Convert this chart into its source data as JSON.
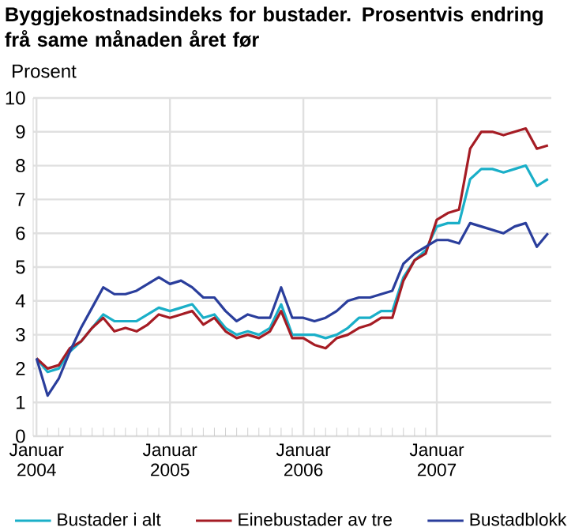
{
  "chart_data": {
    "type": "line",
    "title": "Byggjekostnadsindeks for bustader. Prosentvis endring frå same månaden året før",
    "ylabel": "Prosent",
    "x": [
      "2004-01",
      "2004-02",
      "2004-03",
      "2004-04",
      "2004-05",
      "2004-06",
      "2004-07",
      "2004-08",
      "2004-09",
      "2004-10",
      "2004-11",
      "2004-12",
      "2005-01",
      "2005-02",
      "2005-03",
      "2005-04",
      "2005-05",
      "2005-06",
      "2005-07",
      "2005-08",
      "2005-09",
      "2005-10",
      "2005-11",
      "2005-12",
      "2006-01",
      "2006-02",
      "2006-03",
      "2006-04",
      "2006-05",
      "2006-06",
      "2006-07",
      "2006-08",
      "2006-09",
      "2006-10",
      "2006-11",
      "2006-12",
      "2007-01",
      "2007-02",
      "2007-03",
      "2007-04",
      "2007-05",
      "2007-06",
      "2007-07",
      "2007-08",
      "2007-09",
      "2007-10",
      "2007-11"
    ],
    "series": [
      {
        "name": "Bustader i alt",
        "color": "#1aafc8",
        "values": [
          2.3,
          1.9,
          2.0,
          2.5,
          2.8,
          3.2,
          3.6,
          3.4,
          3.4,
          3.4,
          3.6,
          3.8,
          3.7,
          3.8,
          3.9,
          3.5,
          3.6,
          3.2,
          3.0,
          3.1,
          3.0,
          3.2,
          3.9,
          3.0,
          3.0,
          3.0,
          2.9,
          3.0,
          3.2,
          3.5,
          3.5,
          3.7,
          3.7,
          4.7,
          5.2,
          5.5,
          6.2,
          6.3,
          6.3,
          7.6,
          7.9,
          7.9,
          7.8,
          7.9,
          8.0,
          7.4,
          7.6
        ]
      },
      {
        "name": "Einebustader av tre",
        "color": "#a51c24",
        "values": [
          2.3,
          2.0,
          2.1,
          2.6,
          2.8,
          3.2,
          3.5,
          3.1,
          3.2,
          3.1,
          3.3,
          3.6,
          3.5,
          3.6,
          3.7,
          3.3,
          3.5,
          3.1,
          2.9,
          3.0,
          2.9,
          3.1,
          3.7,
          2.9,
          2.9,
          2.7,
          2.6,
          2.9,
          3.0,
          3.2,
          3.3,
          3.5,
          3.5,
          4.6,
          5.2,
          5.4,
          6.4,
          6.6,
          6.7,
          8.5,
          9.0,
          9.0,
          8.9,
          9.0,
          9.1,
          8.5,
          8.6
        ]
      },
      {
        "name": "Bustadblokk",
        "color": "#2a3e9c",
        "values": [
          2.3,
          1.2,
          1.7,
          2.5,
          3.2,
          3.8,
          4.4,
          4.2,
          4.2,
          4.3,
          4.5,
          4.7,
          4.5,
          4.6,
          4.4,
          4.1,
          4.1,
          3.7,
          3.4,
          3.6,
          3.5,
          3.5,
          4.4,
          3.5,
          3.5,
          3.4,
          3.5,
          3.7,
          4.0,
          4.1,
          4.1,
          4.2,
          4.3,
          5.1,
          5.4,
          5.6,
          5.8,
          5.8,
          5.7,
          6.3,
          6.2,
          6.1,
          6.0,
          6.2,
          6.3,
          5.6,
          6.0
        ]
      }
    ],
    "xlim": [
      "2004-01",
      "2007-11"
    ],
    "xticks": [
      {
        "value": "2004-01",
        "label": "Januar 2004"
      },
      {
        "value": "2005-01",
        "label": "Januar 2005"
      },
      {
        "value": "2006-01",
        "label": "Januar 2006"
      },
      {
        "value": "2007-01",
        "label": "Januar 2007"
      }
    ],
    "ylim": [
      0,
      10
    ],
    "yticks": [
      0,
      1,
      2,
      3,
      4,
      5,
      6,
      7,
      8,
      9,
      10
    ],
    "grid": true,
    "legend": "bottom",
    "marker": "none",
    "line_style": "solid"
  }
}
